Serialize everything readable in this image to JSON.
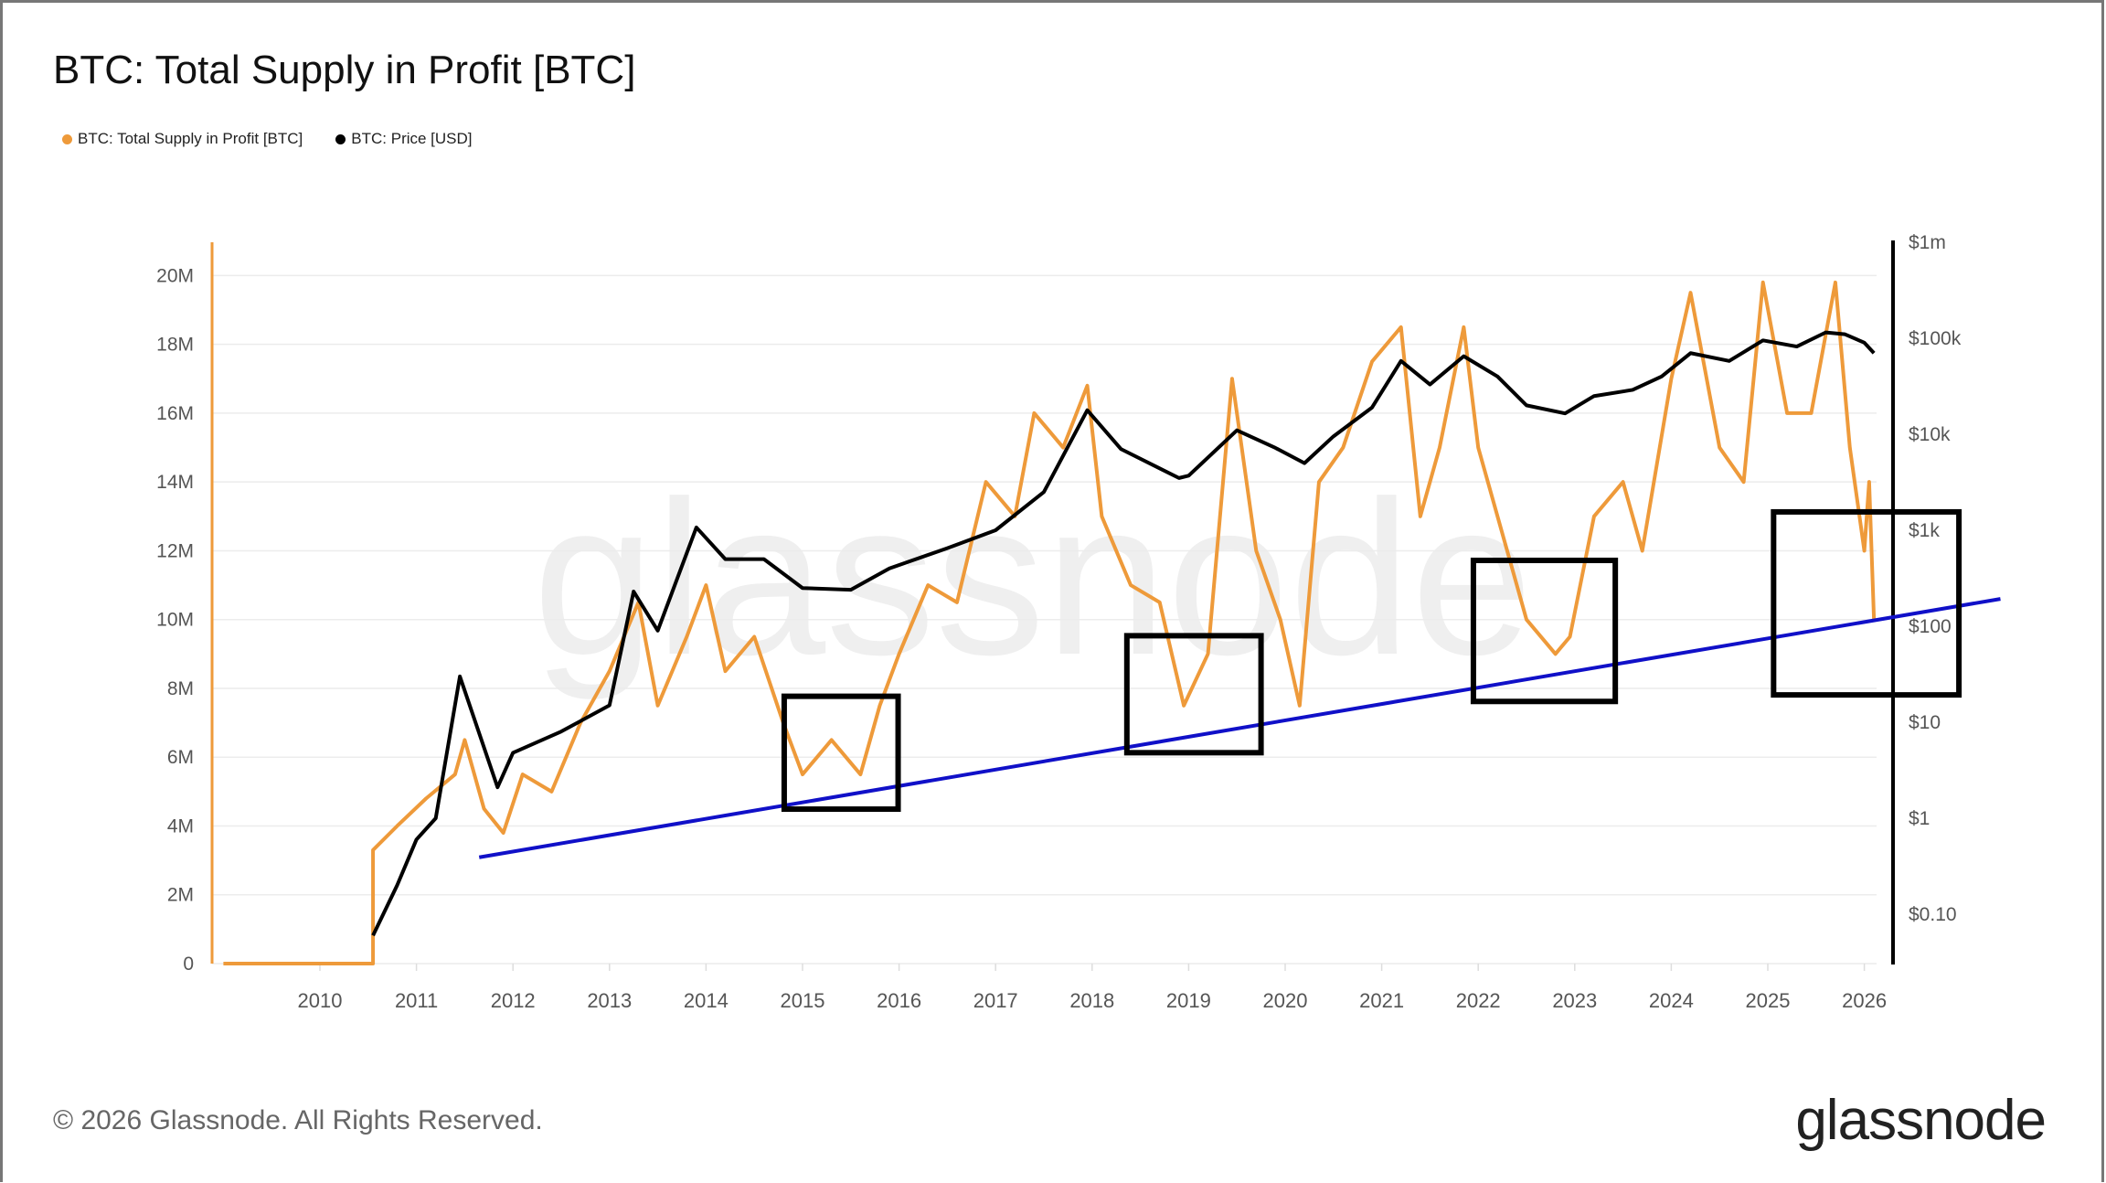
{
  "chart_data": {
    "type": "line",
    "title": "BTC: Total Supply in Profit [BTC]",
    "legend": [
      "BTC: Total Supply in Profit [BTC]",
      "BTC: Price [USD]"
    ],
    "legend_placement": "top-left",
    "x_ticks": [
      "2010",
      "2011",
      "2012",
      "2013",
      "2014",
      "2015",
      "2016",
      "2017",
      "2018",
      "2019",
      "2020",
      "2021",
      "2022",
      "2023",
      "2024",
      "2025",
      "2026"
    ],
    "y_left_ticks": [
      "0",
      "2M",
      "4M",
      "6M",
      "8M",
      "10M",
      "12M",
      "14M",
      "16M",
      "18M",
      "20M"
    ],
    "y_left_values": [
      0,
      2,
      4,
      6,
      8,
      10,
      12,
      14,
      16,
      18,
      20
    ],
    "y_left_unit": "millions BTC",
    "y_right_ticks": [
      "$0.10",
      "$1",
      "$10",
      "$100",
      "$1k",
      "$10k",
      "$100k",
      "$1m"
    ],
    "y_right_values": [
      0.1,
      1,
      10,
      100,
      1000,
      10000,
      100000,
      1000000
    ],
    "y_right_scale": "log",
    "grid": true,
    "colors": {
      "supply": "#ee9a3a",
      "price": "#000000",
      "trendline": "#1010c8",
      "boxes": "#000000"
    },
    "series": [
      {
        "name": "BTC: Total Supply in Profit [BTC]",
        "axis": "left",
        "points": [
          [
            2009.0,
            0
          ],
          [
            2010.55,
            0
          ],
          [
            2010.55,
            3.3
          ],
          [
            2010.8,
            4
          ],
          [
            2011.1,
            4.8
          ],
          [
            2011.4,
            5.5
          ],
          [
            2011.5,
            6.5
          ],
          [
            2011.7,
            4.5
          ],
          [
            2011.9,
            3.8
          ],
          [
            2012.1,
            5.5
          ],
          [
            2012.4,
            5
          ],
          [
            2012.7,
            7
          ],
          [
            2013.0,
            8.5
          ],
          [
            2013.3,
            10.5
          ],
          [
            2013.5,
            7.5
          ],
          [
            2013.8,
            9.5
          ],
          [
            2014.0,
            11
          ],
          [
            2014.2,
            8.5
          ],
          [
            2014.5,
            9.5
          ],
          [
            2014.8,
            7
          ],
          [
            2015.0,
            5.5
          ],
          [
            2015.3,
            6.5
          ],
          [
            2015.6,
            5.5
          ],
          [
            2015.8,
            7.5
          ],
          [
            2016.0,
            9
          ],
          [
            2016.3,
            11
          ],
          [
            2016.6,
            10.5
          ],
          [
            2016.9,
            14
          ],
          [
            2017.2,
            13
          ],
          [
            2017.4,
            16
          ],
          [
            2017.7,
            15
          ],
          [
            2017.95,
            16.8
          ],
          [
            2018.1,
            13
          ],
          [
            2018.4,
            11
          ],
          [
            2018.7,
            10.5
          ],
          [
            2018.95,
            7.5
          ],
          [
            2019.2,
            9
          ],
          [
            2019.45,
            17
          ],
          [
            2019.7,
            12
          ],
          [
            2019.95,
            10
          ],
          [
            2020.15,
            7.5
          ],
          [
            2020.35,
            14
          ],
          [
            2020.6,
            15
          ],
          [
            2020.9,
            17.5
          ],
          [
            2021.2,
            18.5
          ],
          [
            2021.4,
            13
          ],
          [
            2021.6,
            15
          ],
          [
            2021.85,
            18.5
          ],
          [
            2022.0,
            15
          ],
          [
            2022.3,
            12
          ],
          [
            2022.5,
            10
          ],
          [
            2022.8,
            9
          ],
          [
            2022.95,
            9.5
          ],
          [
            2023.2,
            13
          ],
          [
            2023.5,
            14
          ],
          [
            2023.7,
            12
          ],
          [
            2024.0,
            17
          ],
          [
            2024.2,
            19.5
          ],
          [
            2024.5,
            15
          ],
          [
            2024.75,
            14
          ],
          [
            2024.95,
            19.8
          ],
          [
            2025.2,
            16
          ],
          [
            2025.45,
            16
          ],
          [
            2025.7,
            19.8
          ],
          [
            2025.85,
            15
          ],
          [
            2026.0,
            12
          ],
          [
            2026.05,
            14
          ],
          [
            2026.1,
            10
          ]
        ]
      },
      {
        "name": "BTC: Price [USD]",
        "axis": "right",
        "points": [
          [
            2010.55,
            0.06
          ],
          [
            2010.8,
            0.2
          ],
          [
            2011.0,
            0.6
          ],
          [
            2011.2,
            1
          ],
          [
            2011.45,
            30
          ],
          [
            2011.84,
            2.1
          ],
          [
            2012.0,
            4.8
          ],
          [
            2012.5,
            8
          ],
          [
            2013.0,
            15
          ],
          [
            2013.25,
            230
          ],
          [
            2013.5,
            90
          ],
          [
            2013.9,
            1070
          ],
          [
            2014.2,
            500
          ],
          [
            2014.6,
            500
          ],
          [
            2015.0,
            250
          ],
          [
            2015.5,
            240
          ],
          [
            2015.9,
            400
          ],
          [
            2016.5,
            650
          ],
          [
            2017.0,
            1000
          ],
          [
            2017.5,
            2500
          ],
          [
            2017.95,
            17800
          ],
          [
            2018.3,
            7000
          ],
          [
            2018.9,
            3500
          ],
          [
            2019.0,
            3700
          ],
          [
            2019.5,
            11000
          ],
          [
            2019.9,
            7200
          ],
          [
            2020.2,
            5000
          ],
          [
            2020.5,
            9500
          ],
          [
            2020.9,
            19000
          ],
          [
            2021.2,
            58000
          ],
          [
            2021.5,
            33000
          ],
          [
            2021.85,
            65000
          ],
          [
            2022.2,
            40000
          ],
          [
            2022.5,
            20000
          ],
          [
            2022.9,
            16500
          ],
          [
            2023.2,
            25000
          ],
          [
            2023.6,
            29000
          ],
          [
            2023.9,
            40000
          ],
          [
            2024.2,
            70000
          ],
          [
            2024.6,
            58000
          ],
          [
            2024.95,
            95000
          ],
          [
            2025.3,
            82000
          ],
          [
            2025.6,
            115000
          ],
          [
            2025.8,
            110000
          ],
          [
            2026.0,
            90000
          ],
          [
            2026.1,
            70000
          ]
        ]
      }
    ],
    "annotations": {
      "trendline": [
        [
          2011.65,
          3.09
        ],
        [
          2027.41,
          10.6
        ]
      ],
      "boxes": [
        {
          "x": [
            2014.81,
            2015.99
          ],
          "y": [
            4.49,
            7.77
          ]
        },
        {
          "x": [
            2018.36,
            2019.75
          ],
          "y": [
            6.13,
            9.53
          ]
        },
        {
          "x": [
            2021.95,
            2023.42
          ],
          "y": [
            7.62,
            11.72
          ]
        },
        {
          "x": [
            2025.06,
            2026.98
          ],
          "y": [
            7.81,
            13.13
          ]
        }
      ]
    }
  },
  "watermark": "glassnode",
  "footer": {
    "copyright": "© 2026 Glassnode. All Rights Reserved.",
    "logo": "glassnode"
  }
}
